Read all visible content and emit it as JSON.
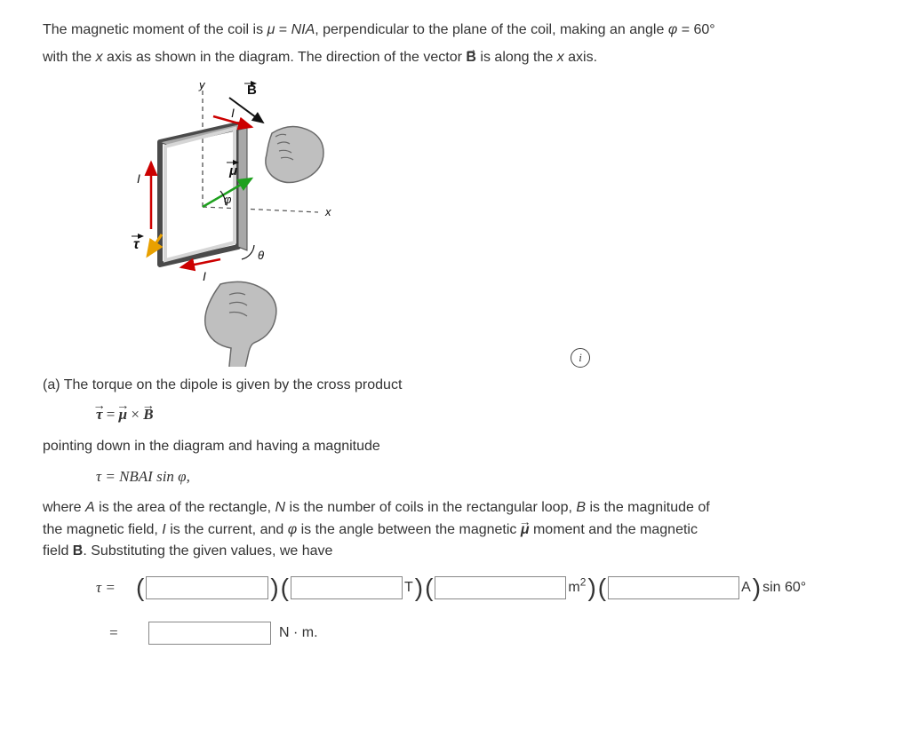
{
  "intro": {
    "line1_a": "The magnetic moment of the coil is ",
    "line1_mu": "μ",
    "line1_b": " = ",
    "line1_nia": "NIA",
    "line1_c": ", perpendicular to the plane of the coil, making an angle ",
    "line1_phi": "φ",
    "line1_d": " = 60°",
    "line2_a": "with the ",
    "line2_x": "x",
    "line2_b": " axis as shown in the diagram. The direction of the vector ",
    "line2_B": "B",
    "line2_c": " is along the ",
    "line2_x2": "x",
    "line2_d": " axis."
  },
  "diagram": {
    "labels": {
      "y": "y",
      "B": "B",
      "I_top": "I",
      "I_left": "I",
      "I_bottom": "I",
      "mu": "μ",
      "phi": "φ",
      "x": "x",
      "tau": "τ",
      "theta": "θ"
    },
    "colors": {
      "coil_outline": "#4a4a4a",
      "coil_fill_front": "#d6d6d6",
      "coil_fill_side": "#a8a8a8",
      "x_axis": "#555555",
      "y_axis": "#444444",
      "I_arrow": "#cc0000",
      "mu_arrow": "#1ea01e",
      "tau_arrow": "#e8a000",
      "hand_fill": "#bfbfbf",
      "hand_stroke": "#6a6a6a",
      "label_dark": "#111111"
    }
  },
  "partA": {
    "heading": "(a) The torque on the dipole is given by the cross product",
    "eq1": {
      "tau": "τ",
      "eq": " = ",
      "mu": "μ",
      "times": " × ",
      "B": "B"
    },
    "mid": "pointing down in the diagram and having a magnitude",
    "eq2": {
      "tau": "τ",
      "rest": " = NBAI sin φ,"
    },
    "desc": {
      "a": "where ",
      "A": "A",
      "b": " is the area of the rectangle, ",
      "N": "N",
      "c": " is the number of coils in the rectangular loop, ",
      "B": "B",
      "d": " is the magnitude of",
      "e": "the magnetic field, ",
      "I": "I",
      "f": " is the current, and ",
      "phi": "φ",
      "g": " is the angle between the magnetic ",
      "mu": "μ",
      "h": " moment and the magnetic",
      "i": "field ",
      "Bvec": "B",
      "j": ". Substituting the given values, we have"
    }
  },
  "calc": {
    "tau": "τ",
    "eq": " = ",
    "lp": "(",
    "rp": ")",
    "unit_T": " T",
    "unit_m2_a": " m",
    "unit_m2_b": "2",
    "unit_A": " A",
    "sin60": "sin 60°",
    "eq2": "=",
    "final_unit": "N · m.",
    "input_widths": {
      "n": 138,
      "t": 126,
      "m2": 148,
      "a": 148,
      "res": 138
    }
  }
}
